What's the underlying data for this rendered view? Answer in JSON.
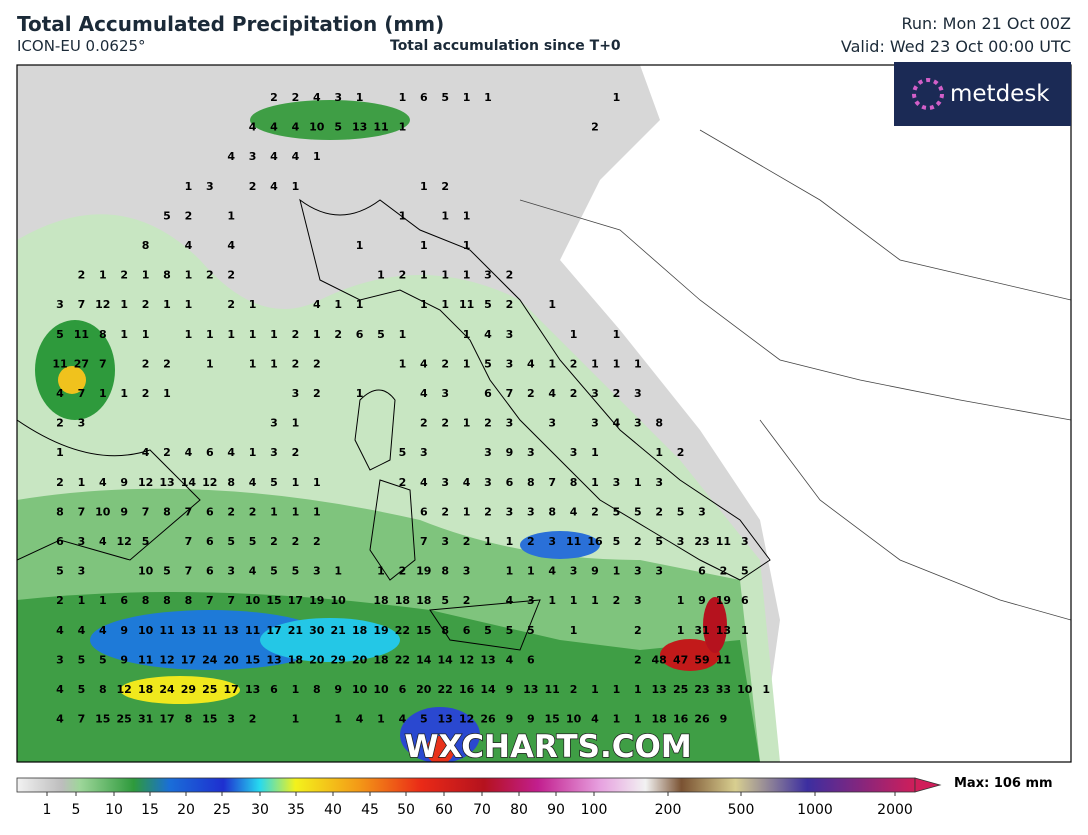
{
  "header": {
    "title": "Total Accumulated Precipitation (mm)",
    "model": "ICON-EU 0.0625°",
    "subtitle": "Total accumulation since T+0",
    "run": "Run: Mon 21 Oct 00Z",
    "valid": "Valid: Wed 23 Oct 00:00 UTC"
  },
  "logo": "metdesk",
  "watermark": "WXCHARTS.COM",
  "colorbar": {
    "ticks": [
      1,
      5,
      10,
      15,
      20,
      25,
      30,
      35,
      40,
      45,
      50,
      60,
      70,
      80,
      90,
      100,
      200,
      500,
      1000,
      2000
    ],
    "max_label": "Max: 106 mm"
  },
  "map": {
    "labels": [
      [
        null,
        null,
        null,
        null,
        null,
        null,
        null,
        null,
        null,
        null,
        2,
        2,
        4,
        3,
        1,
        null,
        1,
        6,
        5,
        1,
        1,
        null,
        null,
        null,
        null,
        null,
        1
      ],
      [
        null,
        null,
        null,
        null,
        null,
        null,
        null,
        null,
        null,
        4,
        4,
        4,
        10,
        5,
        13,
        11,
        1,
        null,
        null,
        null,
        null,
        null,
        null,
        null,
        null,
        2
      ],
      [
        null,
        null,
        null,
        null,
        null,
        null,
        null,
        null,
        4,
        3,
        4,
        4,
        1
      ],
      [
        null,
        null,
        null,
        null,
        null,
        null,
        1,
        3,
        null,
        2,
        4,
        1,
        null,
        null,
        null,
        null,
        null,
        1,
        2
      ],
      [
        null,
        null,
        null,
        null,
        null,
        5,
        2,
        null,
        1,
        null,
        null,
        null,
        null,
        null,
        null,
        null,
        1,
        null,
        1,
        1
      ],
      [
        null,
        null,
        null,
        null,
        8,
        null,
        4,
        null,
        4,
        null,
        null,
        null,
        null,
        null,
        1,
        null,
        null,
        1,
        null,
        1
      ],
      [
        null,
        2,
        1,
        2,
        1,
        8,
        1,
        2,
        2,
        null,
        null,
        null,
        null,
        null,
        null,
        1,
        2,
        1,
        1,
        1,
        3,
        2
      ],
      [
        3,
        7,
        12,
        1,
        2,
        1,
        1,
        null,
        2,
        1,
        null,
        null,
        4,
        1,
        1,
        null,
        null,
        1,
        1,
        11,
        5,
        2,
        null,
        1
      ],
      [
        5,
        11,
        8,
        1,
        1,
        null,
        1,
        1,
        1,
        1,
        1,
        2,
        1,
        2,
        6,
        5,
        1,
        null,
        null,
        1,
        4,
        3,
        null,
        null,
        1,
        null,
        1
      ],
      [
        11,
        27,
        7,
        null,
        2,
        2,
        null,
        1,
        null,
        1,
        1,
        2,
        2,
        null,
        null,
        null,
        1,
        4,
        2,
        1,
        5,
        3,
        4,
        1,
        2,
        1,
        1,
        1
      ],
      [
        4,
        7,
        1,
        1,
        2,
        1,
        null,
        null,
        null,
        null,
        null,
        3,
        2,
        null,
        1,
        null,
        null,
        4,
        3,
        null,
        6,
        7,
        2,
        4,
        2,
        3,
        2,
        3
      ],
      [
        2,
        3,
        null,
        null,
        null,
        null,
        null,
        null,
        null,
        null,
        3,
        1,
        null,
        null,
        null,
        null,
        null,
        2,
        2,
        1,
        2,
        3,
        null,
        3,
        null,
        3,
        4,
        3,
        8
      ],
      [
        1,
        null,
        null,
        null,
        4,
        2,
        4,
        6,
        4,
        1,
        3,
        2,
        null,
        null,
        null,
        null,
        5,
        3,
        null,
        null,
        3,
        9,
        3,
        null,
        3,
        1,
        null,
        null,
        1,
        2
      ],
      [
        2,
        1,
        4,
        9,
        12,
        13,
        14,
        12,
        8,
        4,
        5,
        1,
        1,
        null,
        null,
        null,
        2,
        4,
        3,
        4,
        3,
        6,
        8,
        7,
        8,
        1,
        3,
        1,
        3
      ],
      [
        8,
        7,
        10,
        9,
        7,
        8,
        7,
        6,
        2,
        2,
        1,
        1,
        1,
        null,
        null,
        null,
        null,
        6,
        2,
        1,
        2,
        3,
        3,
        8,
        4,
        2,
        5,
        5,
        2,
        5,
        3
      ],
      [
        6,
        3,
        4,
        12,
        5,
        null,
        7,
        6,
        5,
        5,
        2,
        2,
        2,
        null,
        null,
        null,
        null,
        7,
        3,
        2,
        1,
        1,
        2,
        3,
        11,
        16,
        5,
        2,
        5,
        3,
        23,
        11,
        3
      ],
      [
        5,
        3,
        null,
        null,
        10,
        5,
        7,
        6,
        3,
        4,
        5,
        5,
        3,
        1,
        null,
        1,
        2,
        19,
        8,
        3,
        null,
        1,
        1,
        4,
        3,
        9,
        1,
        3,
        3,
        null,
        6,
        2,
        5
      ],
      [
        2,
        1,
        1,
        6,
        8,
        8,
        8,
        7,
        7,
        10,
        15,
        17,
        19,
        10,
        null,
        18,
        18,
        18,
        5,
        2,
        null,
        4,
        3,
        1,
        1,
        1,
        2,
        3,
        null,
        1,
        9,
        19,
        6
      ],
      [
        4,
        4,
        4,
        9,
        10,
        11,
        13,
        11,
        13,
        11,
        17,
        21,
        30,
        21,
        18,
        19,
        22,
        15,
        8,
        6,
        5,
        5,
        5,
        null,
        1,
        null,
        null,
        2,
        null,
        1,
        31,
        13,
        1
      ],
      [
        3,
        5,
        5,
        9,
        11,
        12,
        17,
        24,
        20,
        15,
        13,
        18,
        20,
        29,
        20,
        18,
        22,
        14,
        14,
        12,
        13,
        4,
        6,
        null,
        null,
        null,
        null,
        2,
        48,
        47,
        59,
        11
      ],
      [
        4,
        5,
        8,
        12,
        18,
        24,
        29,
        25,
        17,
        13,
        6,
        1,
        8,
        9,
        10,
        10,
        6,
        20,
        22,
        16,
        14,
        9,
        13,
        11,
        2,
        1,
        1,
        1,
        13,
        25,
        23,
        33,
        10,
        1
      ],
      [
        4,
        7,
        15,
        25,
        31,
        17,
        8,
        15,
        3,
        2,
        null,
        1,
        null,
        1,
        4,
        1,
        4,
        5,
        13,
        12,
        26,
        9,
        9,
        15,
        10,
        4,
        1,
        1,
        18,
        16,
        26,
        9
      ]
    ]
  }
}
